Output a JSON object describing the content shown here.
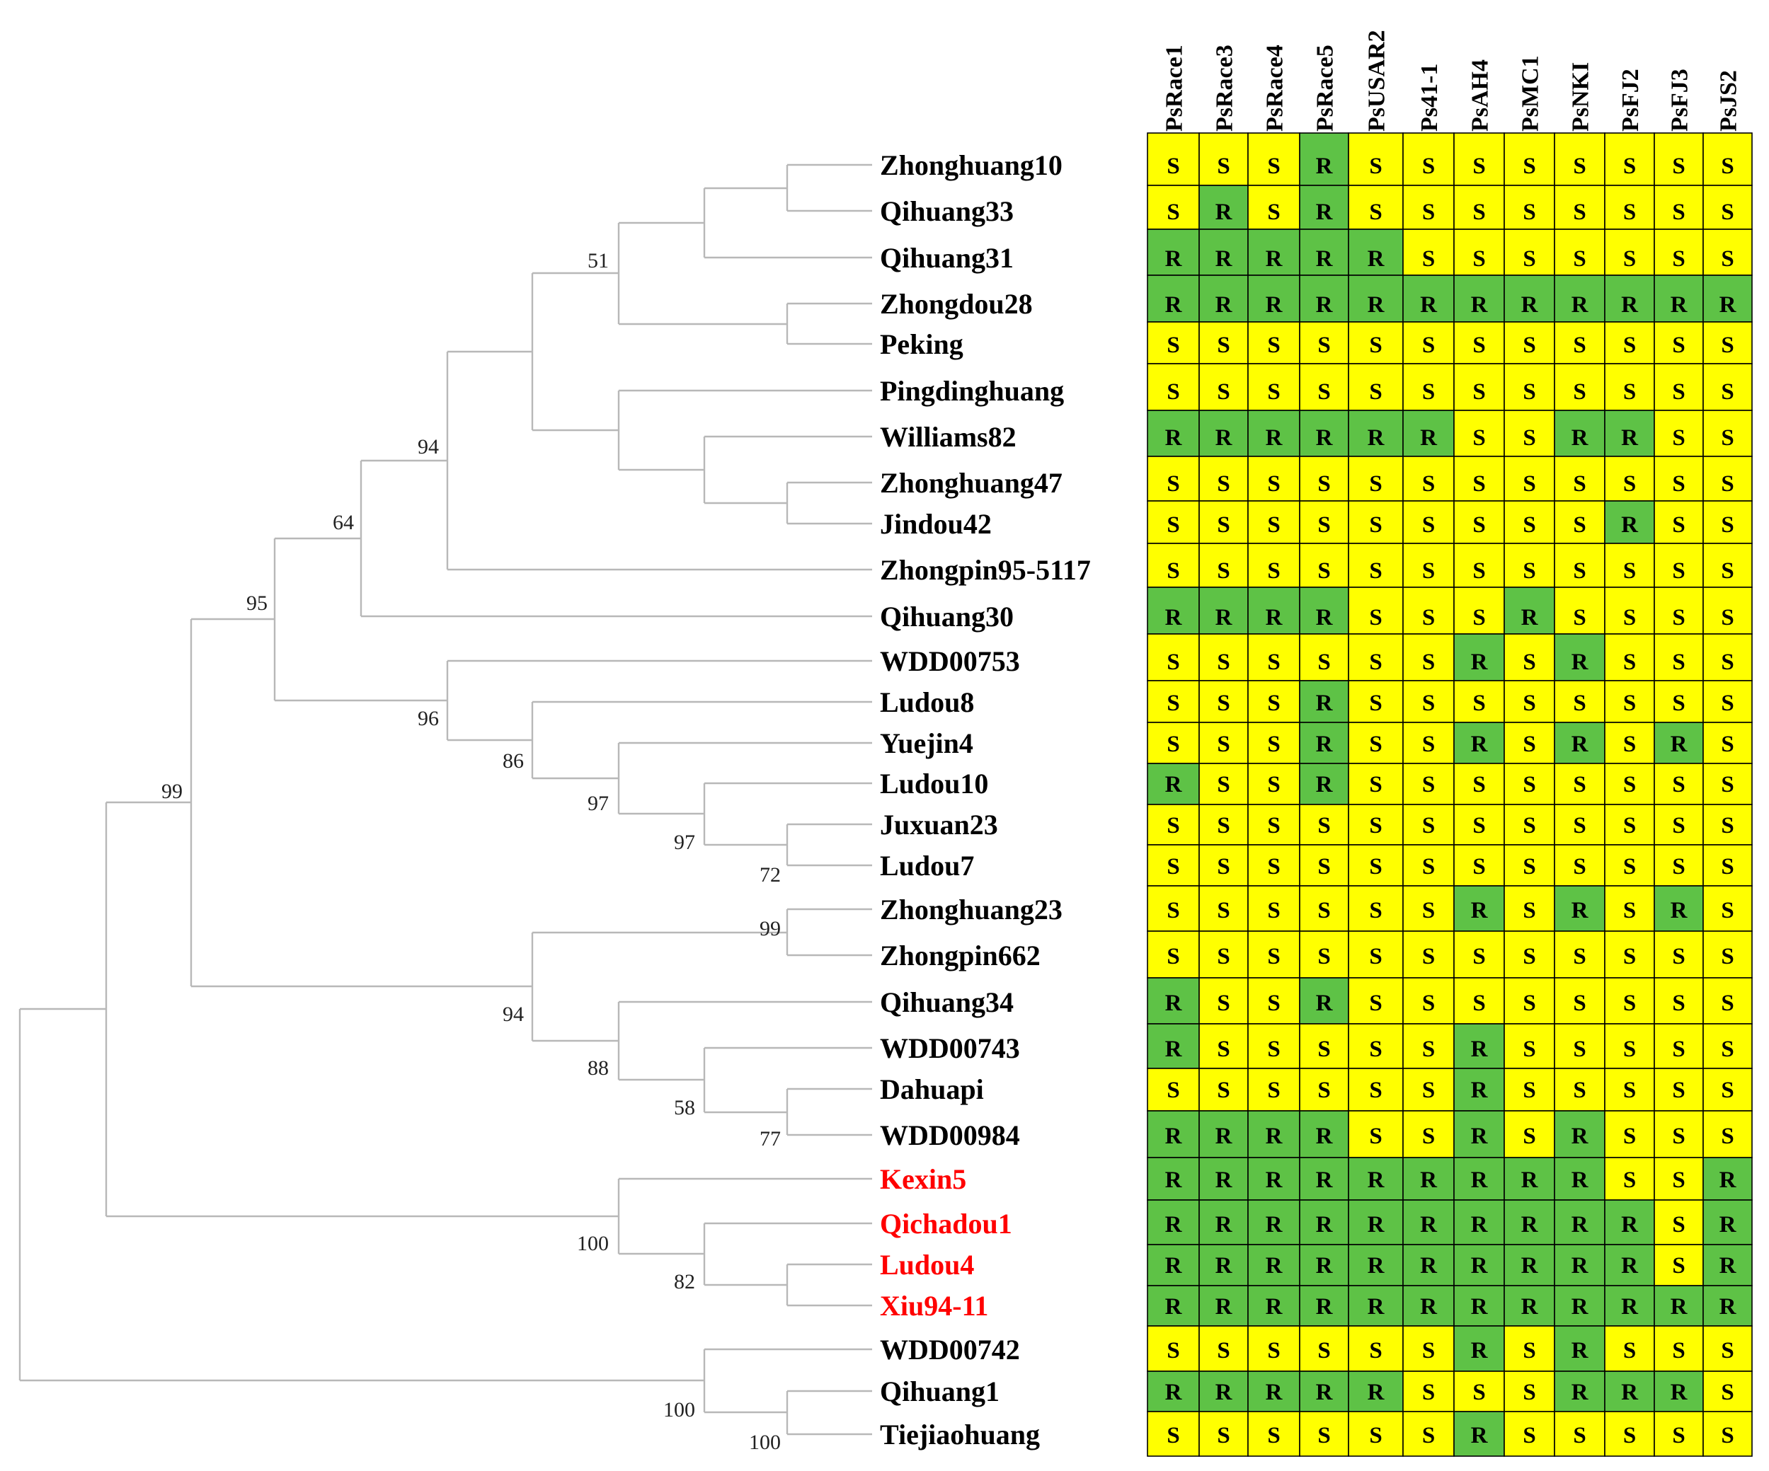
{
  "colors": {
    "resistant": "#5ec246",
    "susceptible": "#ffff00",
    "highlight_taxon": "#ff0000",
    "normal_taxon": "#000000",
    "tree_line": "#b8b8b8"
  },
  "strains": [
    "PsRace1",
    "PsRace3",
    "PsRace4",
    "PsRace5",
    "PsUSAR2",
    "Ps41-1",
    "PsAH4",
    "PsMC1",
    "PsNKI",
    "PsFJ2",
    "PsFJ3",
    "PsJS2"
  ],
  "taxa": [
    {
      "name": "Zhonghuang10",
      "highlight": false,
      "reactions": [
        "S",
        "S",
        "S",
        "R",
        "S",
        "S",
        "S",
        "S",
        "S",
        "S",
        "S",
        "S"
      ]
    },
    {
      "name": "Qihuang33",
      "highlight": false,
      "reactions": [
        "S",
        "R",
        "S",
        "R",
        "S",
        "S",
        "S",
        "S",
        "S",
        "S",
        "S",
        "S"
      ]
    },
    {
      "name": "Qihuang31",
      "highlight": false,
      "reactions": [
        "R",
        "R",
        "R",
        "R",
        "R",
        "S",
        "S",
        "S",
        "S",
        "S",
        "S",
        "S"
      ]
    },
    {
      "name": "Zhongdou28",
      "highlight": false,
      "reactions": [
        "R",
        "R",
        "R",
        "R",
        "R",
        "R",
        "R",
        "R",
        "R",
        "R",
        "R",
        "R"
      ]
    },
    {
      "name": "Peking",
      "highlight": false,
      "reactions": [
        "S",
        "S",
        "S",
        "S",
        "S",
        "S",
        "S",
        "S",
        "S",
        "S",
        "S",
        "S"
      ]
    },
    {
      "name": "Pingdinghuang",
      "highlight": false,
      "reactions": [
        "S",
        "S",
        "S",
        "S",
        "S",
        "S",
        "S",
        "S",
        "S",
        "S",
        "S",
        "S"
      ]
    },
    {
      "name": "Williams82",
      "highlight": false,
      "reactions": [
        "R",
        "R",
        "R",
        "R",
        "R",
        "R",
        "S",
        "S",
        "R",
        "R",
        "S",
        "S"
      ]
    },
    {
      "name": "Zhonghuang47",
      "highlight": false,
      "reactions": [
        "S",
        "S",
        "S",
        "S",
        "S",
        "S",
        "S",
        "S",
        "S",
        "S",
        "S",
        "S"
      ]
    },
    {
      "name": "Jindou42",
      "highlight": false,
      "reactions": [
        "S",
        "S",
        "S",
        "S",
        "S",
        "S",
        "S",
        "S",
        "S",
        "R",
        "S",
        "S"
      ]
    },
    {
      "name": "Zhongpin95-5117",
      "highlight": false,
      "reactions": [
        "S",
        "S",
        "S",
        "S",
        "S",
        "S",
        "S",
        "S",
        "S",
        "S",
        "S",
        "S"
      ]
    },
    {
      "name": "Qihuang30",
      "highlight": false,
      "reactions": [
        "R",
        "R",
        "R",
        "R",
        "S",
        "S",
        "S",
        "R",
        "S",
        "S",
        "S",
        "S"
      ]
    },
    {
      "name": "WDD00753",
      "highlight": false,
      "reactions": [
        "S",
        "S",
        "S",
        "S",
        "S",
        "S",
        "R",
        "S",
        "R",
        "S",
        "S",
        "S"
      ]
    },
    {
      "name": "Ludou8",
      "highlight": false,
      "reactions": [
        "S",
        "S",
        "S",
        "R",
        "S",
        "S",
        "S",
        "S",
        "S",
        "S",
        "S",
        "S"
      ]
    },
    {
      "name": "Yuejin4",
      "highlight": false,
      "reactions": [
        "S",
        "S",
        "S",
        "R",
        "S",
        "S",
        "R",
        "S",
        "R",
        "S",
        "R",
        "S"
      ]
    },
    {
      "name": "Ludou10",
      "highlight": false,
      "reactions": [
        "R",
        "S",
        "S",
        "R",
        "S",
        "S",
        "S",
        "S",
        "S",
        "S",
        "S",
        "S"
      ]
    },
    {
      "name": "Juxuan23",
      "highlight": false,
      "reactions": [
        "S",
        "S",
        "S",
        "S",
        "S",
        "S",
        "S",
        "S",
        "S",
        "S",
        "S",
        "S"
      ]
    },
    {
      "name": "Ludou7",
      "highlight": false,
      "reactions": [
        "S",
        "S",
        "S",
        "S",
        "S",
        "S",
        "S",
        "S",
        "S",
        "S",
        "S",
        "S"
      ]
    },
    {
      "name": "Zhonghuang23",
      "highlight": false,
      "reactions": [
        "S",
        "S",
        "S",
        "S",
        "S",
        "S",
        "R",
        "S",
        "R",
        "S",
        "R",
        "S"
      ]
    },
    {
      "name": "Zhongpin662",
      "highlight": false,
      "reactions": [
        "S",
        "S",
        "S",
        "S",
        "S",
        "S",
        "S",
        "S",
        "S",
        "S",
        "S",
        "S"
      ]
    },
    {
      "name": "Qihuang34",
      "highlight": false,
      "reactions": [
        "R",
        "S",
        "S",
        "R",
        "S",
        "S",
        "S",
        "S",
        "S",
        "S",
        "S",
        "S"
      ]
    },
    {
      "name": "WDD00743",
      "highlight": false,
      "reactions": [
        "R",
        "S",
        "S",
        "S",
        "S",
        "S",
        "R",
        "S",
        "S",
        "S",
        "S",
        "S"
      ]
    },
    {
      "name": "Dahuapi",
      "highlight": false,
      "reactions": [
        "S",
        "S",
        "S",
        "S",
        "S",
        "S",
        "R",
        "S",
        "S",
        "S",
        "S",
        "S"
      ]
    },
    {
      "name": "WDD00984",
      "highlight": false,
      "reactions": [
        "R",
        "R",
        "R",
        "R",
        "S",
        "S",
        "R",
        "S",
        "R",
        "S",
        "S",
        "S"
      ]
    },
    {
      "name": "Kexin5",
      "highlight": true,
      "reactions": [
        "R",
        "R",
        "R",
        "R",
        "R",
        "R",
        "R",
        "R",
        "R",
        "S",
        "S",
        "R"
      ]
    },
    {
      "name": "Qichadou1",
      "highlight": true,
      "reactions": [
        "R",
        "R",
        "R",
        "R",
        "R",
        "R",
        "R",
        "R",
        "R",
        "R",
        "S",
        "R"
      ]
    },
    {
      "name": "Ludou4",
      "highlight": true,
      "reactions": [
        "R",
        "R",
        "R",
        "R",
        "R",
        "R",
        "R",
        "R",
        "R",
        "R",
        "S",
        "R"
      ]
    },
    {
      "name": "Xiu94-11",
      "highlight": true,
      "reactions": [
        "R",
        "R",
        "R",
        "R",
        "R",
        "R",
        "R",
        "R",
        "R",
        "R",
        "R",
        "R"
      ]
    },
    {
      "name": "WDD00742",
      "highlight": false,
      "reactions": [
        "S",
        "S",
        "S",
        "S",
        "S",
        "S",
        "R",
        "S",
        "R",
        "S",
        "S",
        "S"
      ]
    },
    {
      "name": "Qihuang1",
      "highlight": false,
      "reactions": [
        "R",
        "R",
        "R",
        "R",
        "R",
        "S",
        "S",
        "S",
        "R",
        "R",
        "R",
        "S"
      ]
    },
    {
      "name": "Tiejiaohuang",
      "highlight": false,
      "reactions": [
        "S",
        "S",
        "S",
        "S",
        "S",
        "S",
        "R",
        "S",
        "S",
        "S",
        "S",
        "S"
      ]
    }
  ],
  "bootstrap_values": [
    "51",
    "94",
    "64",
    "95",
    "96",
    "86",
    "97",
    "97",
    "72",
    "99",
    "99",
    "94",
    "88",
    "58",
    "77",
    "100",
    "82",
    "100",
    "100"
  ]
}
